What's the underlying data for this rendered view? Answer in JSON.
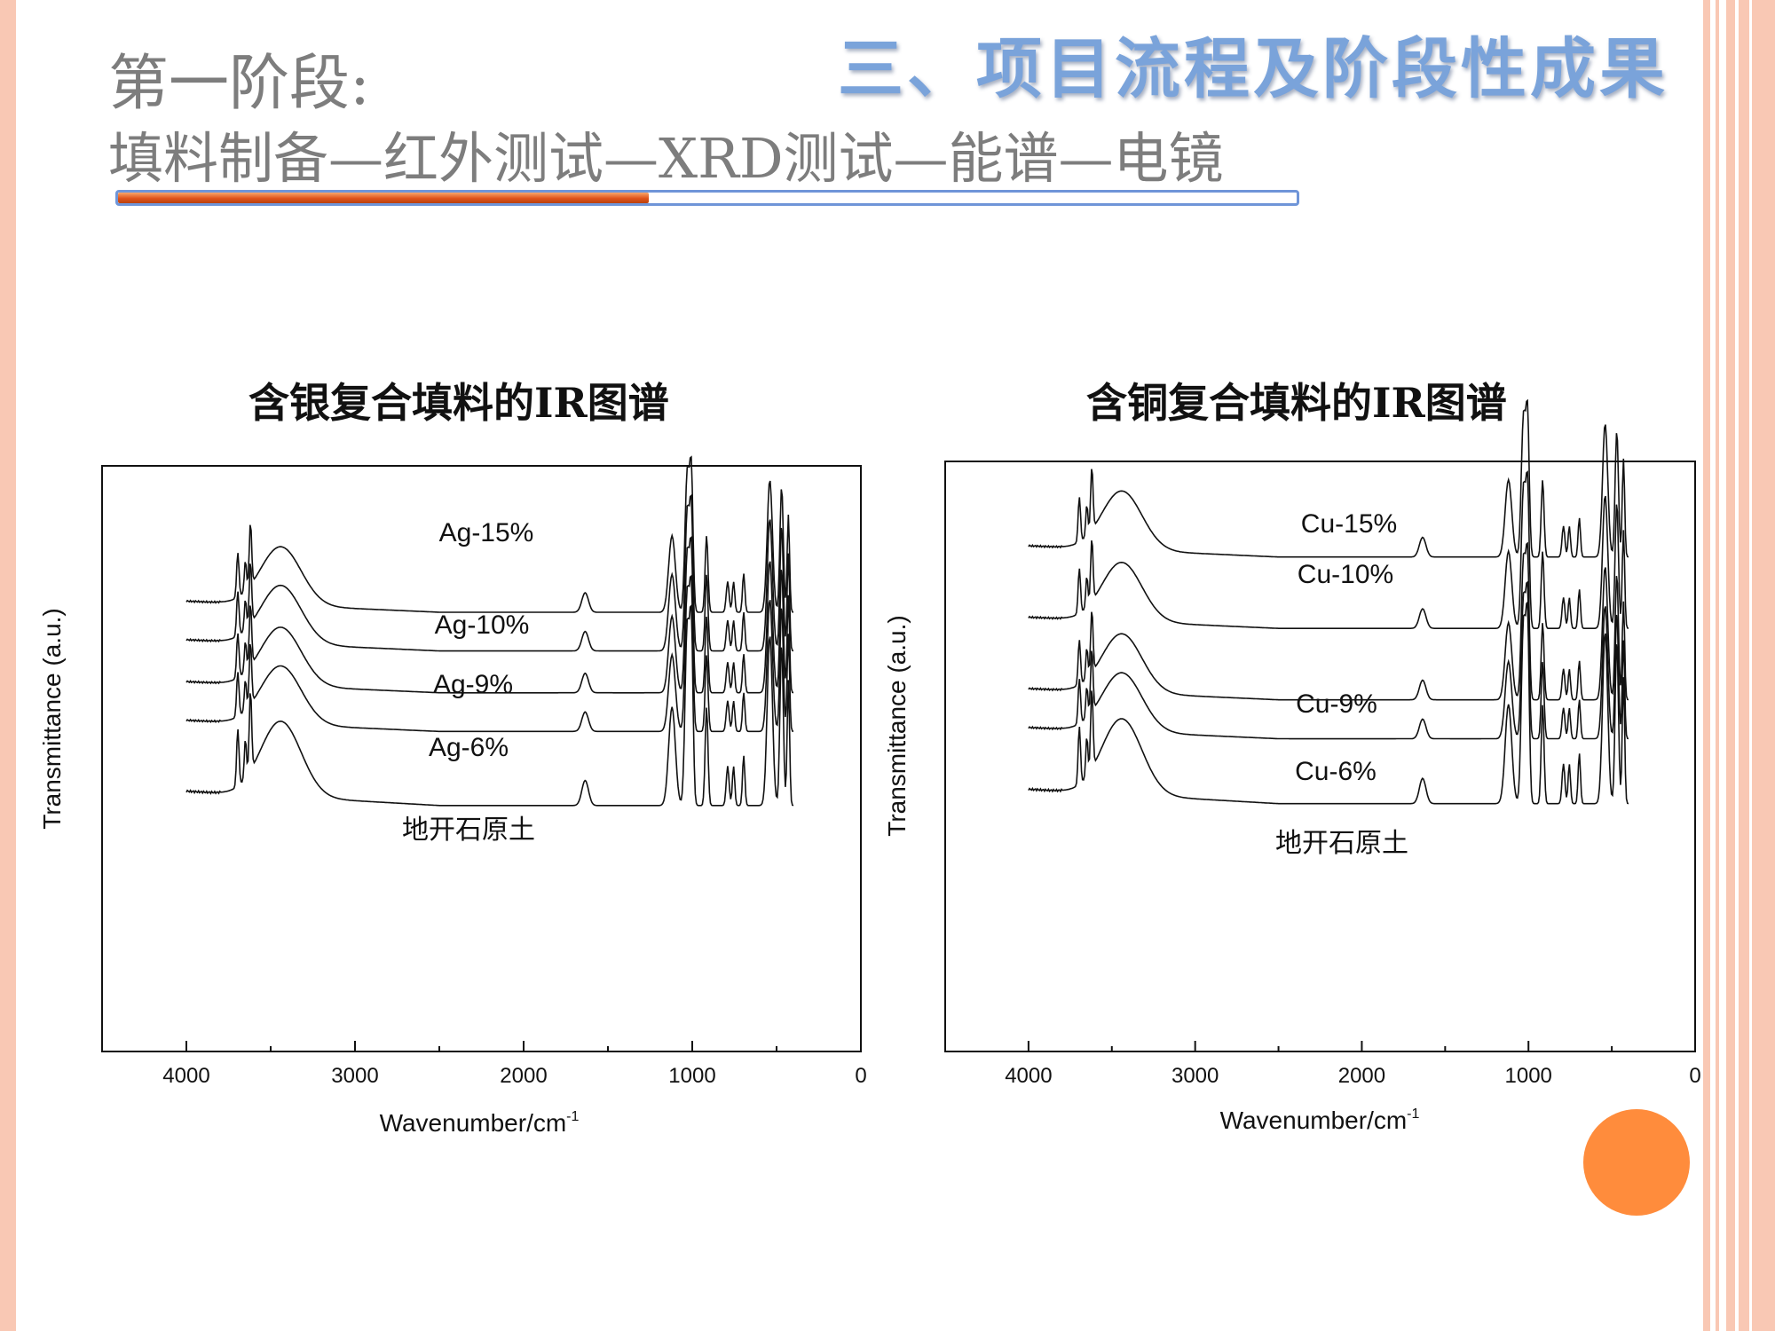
{
  "slide": {
    "section_title": "三、项目流程及阶段性成果",
    "stage_title": "第一阶段:",
    "stage_subtitle": "填料制备—红外测试—XRD测试—能谱—电镜",
    "colors": {
      "accent_blue": "#7aa3da",
      "accent_orange": "#e0531a",
      "border_peach": "#f9c8b4",
      "circle": "#ff8c3c"
    },
    "progress_fraction": 0.45
  },
  "chart_data": [
    {
      "type": "line",
      "title": "含银复合填料的IR图谱",
      "xlabel": "Wavenumber/cm",
      "xlabel_sup": "-1",
      "ylabel": "Transmittance (a.u.)",
      "xlim": [
        4500,
        0
      ],
      "x_ticks": [
        "4000",
        "3000",
        "2000",
        "1000",
        "0"
      ],
      "x_tick_values": [
        4000,
        3000,
        2000,
        1000,
        0
      ],
      "y_ticks_shown": false,
      "series": [
        {
          "name": "Ag-15%",
          "offset": 0.6
        },
        {
          "name": "Ag-10%",
          "offset": 0.48
        },
        {
          "name": "Ag-9%",
          "offset": 0.35
        },
        {
          "name": "Ag-6%",
          "offset": 0.23
        },
        {
          "name": "地开石原土",
          "offset": 0.0
        }
      ]
    },
    {
      "type": "line",
      "title": "含铜复合填料的IR图谱",
      "xlabel": "Wavenumber/cm",
      "xlabel_sup": "-1",
      "ylabel": "Transmittance (a.u.)",
      "xlim": [
        4500,
        0
      ],
      "x_ticks": [
        "4000",
        "3000",
        "2000",
        "1000",
        "0"
      ],
      "x_tick_values": [
        4000,
        3000,
        2000,
        1000,
        0
      ],
      "y_ticks_shown": false,
      "series": [
        {
          "name": "Cu-15%",
          "offset": 0.76
        },
        {
          "name": "Cu-10%",
          "offset": 0.54
        },
        {
          "name": "Cu-9%",
          "offset": 0.32
        },
        {
          "name": "Cu-6%",
          "offset": 0.2
        },
        {
          "name": "地开石原土",
          "offset": 0.0
        }
      ]
    }
  ]
}
